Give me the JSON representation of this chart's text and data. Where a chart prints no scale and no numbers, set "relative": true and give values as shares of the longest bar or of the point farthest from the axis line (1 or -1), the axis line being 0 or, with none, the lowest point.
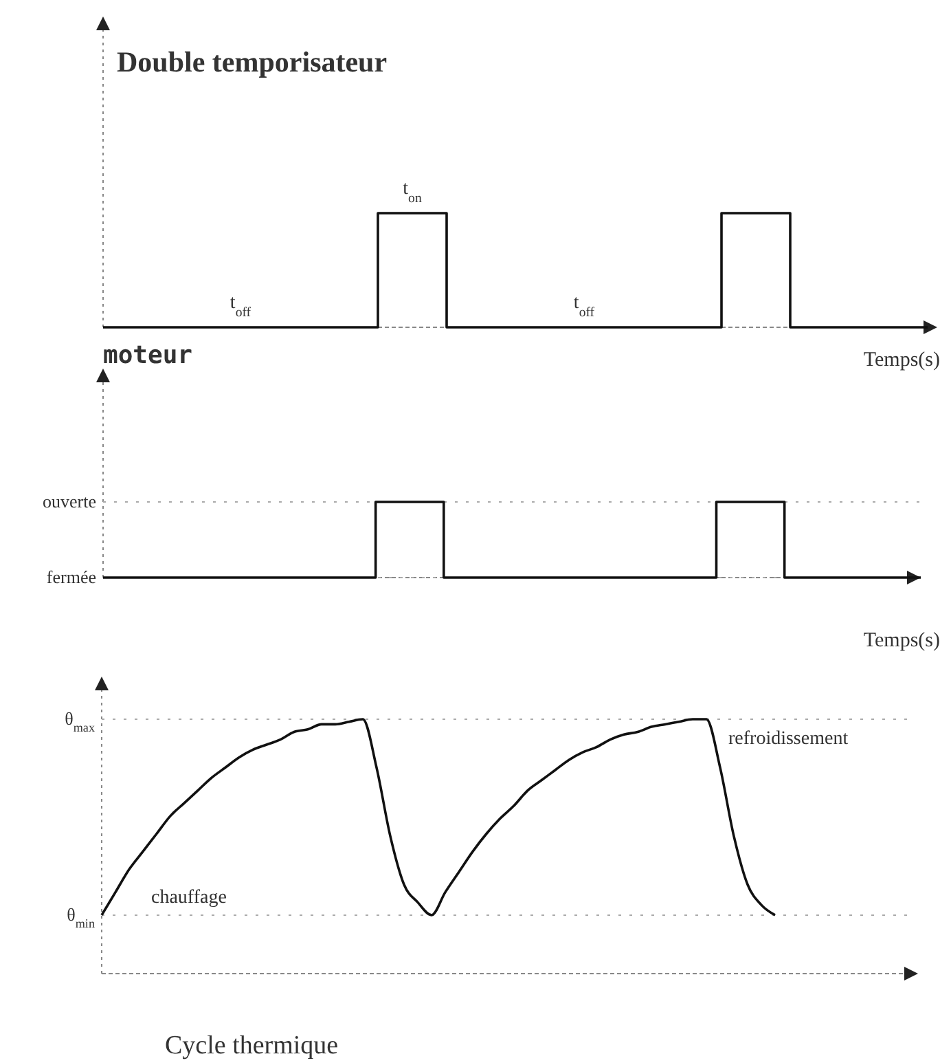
{
  "chart_data": [
    {
      "type": "step",
      "title": "Double temporisateur",
      "xlabel": "Temps(s)",
      "relative": true,
      "color": "#111111",
      "categories": [
        null,
        null,
        null,
        null,
        null,
        null,
        null,
        null,
        null,
        null,
        null,
        null,
        null,
        null,
        null,
        null,
        null,
        null,
        null,
        null,
        null,
        null,
        null,
        null,
        null
      ],
      "values": [
        0,
        0,
        0,
        0,
        0,
        0,
        0,
        0,
        1,
        1,
        0,
        0,
        0,
        0,
        0,
        0,
        0,
        0,
        1,
        1,
        0,
        0,
        0,
        0,
        0
      ],
      "annotations": [
        "t$_{off}$",
        "t$_{on}$",
        "t$_{off}$"
      ]
    },
    {
      "type": "step",
      "title": "moteur",
      "xlabel": "Temps(s)",
      "relative": true,
      "color": "#111111",
      "categories": [
        null,
        null,
        null,
        null,
        null,
        null,
        null,
        null,
        null,
        null,
        null,
        null,
        null,
        null,
        null,
        null,
        null,
        null,
        null,
        null,
        null,
        null,
        null,
        null,
        null
      ],
      "values": [
        0,
        0,
        0,
        0,
        0,
        0,
        0,
        0,
        1,
        1,
        0,
        0,
        0,
        0,
        0,
        0,
        0,
        0,
        1,
        1,
        0,
        0,
        0,
        0,
        0
      ],
      "ref_lines": [
        {
          "axis": "y",
          "value": 1,
          "label": "ouverte",
          "line_style": "dotted"
        },
        {
          "axis": "y",
          "value": 0,
          "label": "fermée",
          "line_style": "dotted"
        }
      ]
    },
    {
      "type": "line",
      "title": "Cycle thermique",
      "relative": true,
      "color": "#111111",
      "categories": [
        null,
        null,
        null,
        null,
        null,
        null,
        null,
        null,
        null,
        null,
        null,
        null,
        null,
        null,
        null,
        null,
        null,
        null,
        null,
        null,
        null,
        null,
        null,
        null,
        null,
        null,
        null,
        null,
        null,
        null,
        null,
        null,
        null,
        null,
        null,
        null,
        null,
        null,
        null,
        null,
        null,
        null,
        null,
        null,
        null,
        null,
        null,
        null,
        null,
        null,
        null,
        null,
        null,
        null,
        null,
        null,
        null,
        null,
        null,
        null
      ],
      "values": [
        0.23,
        0.32,
        0.41,
        0.48,
        0.55,
        0.62,
        0.67,
        0.72,
        0.77,
        0.81,
        0.85,
        0.88,
        0.9,
        0.92,
        0.95,
        0.96,
        0.98,
        0.98,
        0.99,
        1,
        0.81,
        0.54,
        0.35,
        0.28,
        0.23,
        0.32,
        0.4,
        0.48,
        0.55,
        0.61,
        0.66,
        0.72,
        0.76,
        0.8,
        0.84,
        0.87,
        0.89,
        0.92,
        0.94,
        0.95,
        0.97,
        0.98,
        0.99,
        1,
        1,
        0.81,
        0.54,
        0.35,
        0.27,
        0.23,
        null,
        null,
        null,
        null,
        null,
        null,
        null,
        null,
        null,
        null
      ],
      "ref_lines": [
        {
          "axis": "y",
          "value": 1,
          "label": "θ$_{max}$",
          "line_style": "dotted"
        },
        {
          "axis": "y",
          "value": 0.23,
          "label": "θ$_{min}$",
          "line_style": "dotted"
        }
      ],
      "annotations": [
        "chauffage",
        "refroidissement"
      ]
    }
  ]
}
